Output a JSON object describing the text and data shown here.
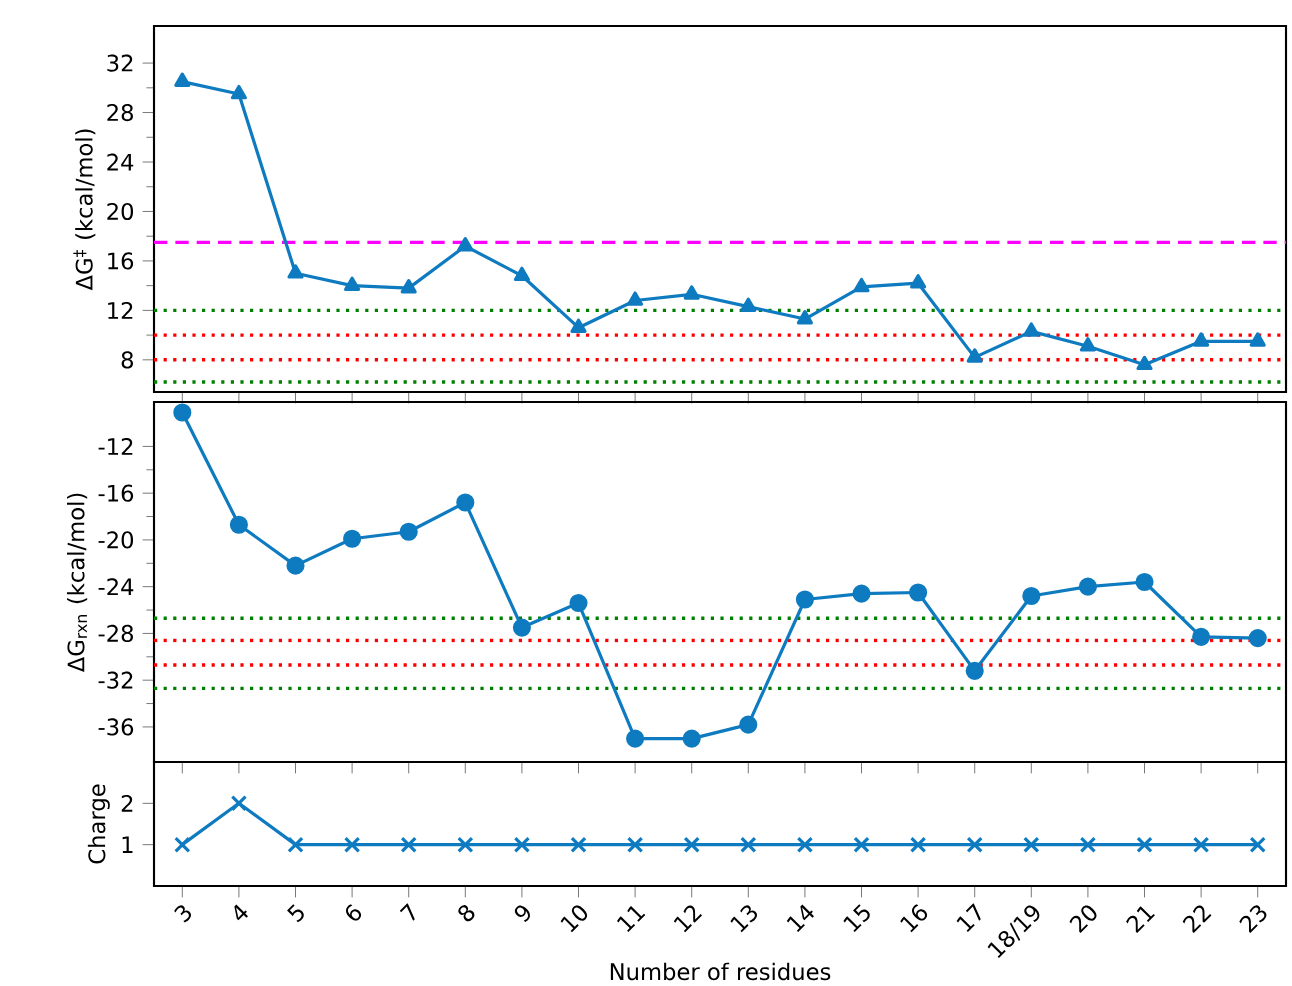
{
  "chart_data": [
    {
      "type": "line",
      "ylabel": "ΔG$^{‡}$ (kcal/mol)",
      "categories": [
        null,
        null,
        null,
        null,
        null,
        null,
        null,
        null,
        null,
        null,
        null,
        null,
        null,
        null,
        null,
        null,
        null,
        null,
        null,
        null
      ],
      "values": [
        30.5,
        29.5,
        15.0,
        14.0,
        13.8,
        17.2,
        14.8,
        10.6,
        12.8,
        13.3,
        12.3,
        11.3,
        13.9,
        14.2,
        8.2,
        10.3,
        9.1,
        7.6,
        9.5,
        9.5
      ],
      "color": "#0e7bc0",
      "marker": "triangle",
      "line_style": "solid",
      "ylim": [
        5.4,
        35
      ],
      "yticks": [
        8,
        12,
        16,
        20,
        24,
        28,
        32
      ],
      "tick_labels": "y",
      "ref_lines": [
        {
          "axis": "y",
          "value": 17.5,
          "color": "#ff00ff",
          "line_style": "dashed"
        },
        {
          "axis": "y",
          "value": 12,
          "color": "#008000",
          "line_style": "dotted"
        },
        {
          "axis": "y",
          "value": 10,
          "color": "#ff0000",
          "line_style": "dotted"
        },
        {
          "axis": "y",
          "value": 8,
          "color": "#ff0000",
          "line_style": "dotted"
        },
        {
          "axis": "y",
          "value": 6.2,
          "color": "#008000",
          "line_style": "dotted"
        }
      ]
    },
    {
      "type": "line",
      "ylabel": "ΔG$_{rxn}$ (kcal/mol)",
      "categories": [
        null,
        null,
        null,
        null,
        null,
        null,
        null,
        null,
        null,
        null,
        null,
        null,
        null,
        null,
        null,
        null,
        null,
        null,
        null,
        null
      ],
      "values": [
        -9.1,
        -18.7,
        -22.2,
        -19.9,
        -19.3,
        -16.8,
        -27.5,
        -25.4,
        -37.0,
        -37.0,
        -35.8,
        -25.1,
        -24.6,
        -24.5,
        -31.2,
        -24.8,
        -24.0,
        -23.6,
        -28.3,
        -28.4
      ],
      "color": "#0e7bc0",
      "marker": "circle",
      "line_style": "solid",
      "ylim": [
        -39,
        -8.2
      ],
      "yticks": [
        -36,
        -32,
        -28,
        -24,
        -20,
        -16,
        -12
      ],
      "tick_labels": "y",
      "ref_lines": [
        {
          "axis": "y",
          "value": -26.7,
          "color": "#008000",
          "line_style": "dotted"
        },
        {
          "axis": "y",
          "value": -28.6,
          "color": "#ff0000",
          "line_style": "dotted"
        },
        {
          "axis": "y",
          "value": -30.7,
          "color": "#ff0000",
          "line_style": "dotted"
        },
        {
          "axis": "y",
          "value": -32.7,
          "color": "#008000",
          "line_style": "dotted"
        }
      ]
    },
    {
      "type": "line",
      "xlabel": "Number of residues",
      "ylabel": "Charge",
      "categories": [
        "3",
        "4",
        "5",
        "6",
        "7",
        "8",
        "9",
        "10",
        "11",
        "12",
        "13",
        "14",
        "15",
        "16",
        "17",
        "18/19",
        "20",
        "21",
        "22",
        "23"
      ],
      "values": [
        1,
        2,
        1,
        1,
        1,
        1,
        1,
        1,
        1,
        1,
        1,
        1,
        1,
        1,
        1,
        1,
        1,
        1,
        1,
        1
      ],
      "color": "#0e7bc0",
      "marker": "cross",
      "line_style": "solid",
      "ylim": [
        0,
        3
      ],
      "yticks": [
        1,
        2
      ]
    }
  ]
}
